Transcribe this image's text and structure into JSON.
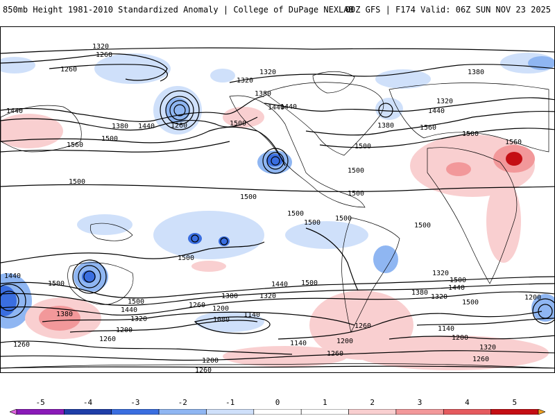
{
  "header": {
    "title": "850mb Height 1981-2010 Standardized Anomaly | College of DuPage NEXLAB",
    "run_info": "00Z GFS | F174 Valid: 06Z SUN NOV 23 2025"
  },
  "contour_labels": [
    "1320",
    "1260",
    "1260",
    "1320",
    "1380",
    "1320",
    "1440",
    "1440",
    "1380",
    "1440",
    "1260",
    "1500",
    "1560",
    "1500",
    "1380",
    "1320",
    "1440",
    "1380",
    "1560",
    "1500",
    "1560",
    "1500",
    "1500",
    "1500",
    "1500",
    "1500",
    "1500",
    "1500",
    "1500",
    "1500",
    "1500",
    "1500",
    "1440",
    "1500",
    "1500",
    "1440",
    "1380",
    "1320",
    "1440",
    "1260",
    "1200",
    "1140",
    "1080",
    "1380",
    "1320",
    "1200",
    "1260",
    "1260",
    "1140",
    "1200",
    "1260",
    "1200",
    "1320",
    "1380",
    "1440",
    "1500",
    "1320",
    "1260",
    "1140",
    "1200",
    "1260",
    "1200",
    "1320",
    "1260",
    "1440",
    "1500"
  ],
  "colorbar": {
    "ticks": [
      "-5",
      "-4",
      "-3",
      "-2",
      "-1",
      "0",
      "1",
      "2",
      "3",
      "4",
      "5"
    ],
    "colors": [
      "#e066e0",
      "#8a1ab8",
      "#1f3ea8",
      "#3a6ee0",
      "#8fb6f2",
      "#cfe0fa",
      "#ffffff",
      "#ffffff",
      "#f9cfd0",
      "#f2989a",
      "#e55a5e",
      "#c40e14",
      "#f0a020"
    ]
  }
}
